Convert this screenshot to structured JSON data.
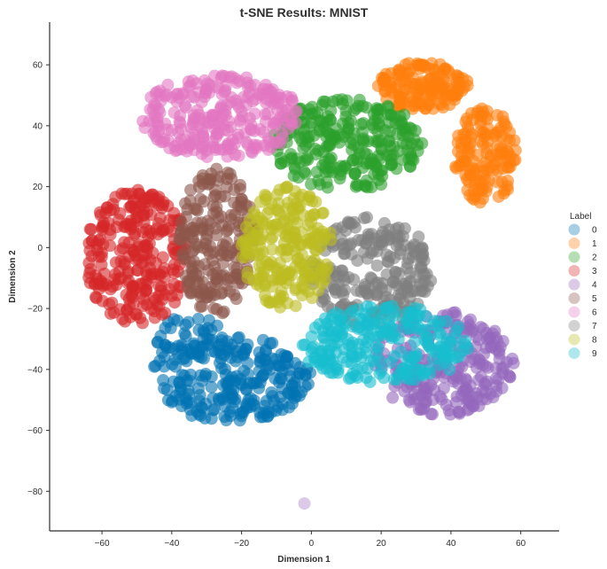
{
  "chart_data": {
    "type": "scatter",
    "title": "t-SNE Results: MNIST",
    "xlabel": "Dimension 1",
    "ylabel": "Dimension 2",
    "xlim": [
      -75,
      71
    ],
    "ylim": [
      -93,
      74
    ],
    "x_ticks": [
      -60,
      -40,
      -20,
      0,
      20,
      40,
      60
    ],
    "y_ticks": [
      -80,
      -60,
      -40,
      -20,
      0,
      20,
      40,
      60
    ],
    "x_tick_labels": [
      "−60",
      "−40",
      "−20",
      "0",
      "20",
      "40",
      "60"
    ],
    "y_tick_labels": [
      "−80",
      "−60",
      "−40",
      "−20",
      "0",
      "20",
      "40",
      "60"
    ],
    "grid": false,
    "legend": {
      "title": "Label",
      "placement": "right"
    },
    "series": [
      {
        "name": "0",
        "color": "#0173b2",
        "clusters": [
          {
            "cx": -23,
            "cy": -43,
            "rx": 23,
            "ry": 14,
            "n": 240
          },
          {
            "cx": -35,
            "cy": -30,
            "rx": 10,
            "ry": 8,
            "n": 40
          }
        ]
      },
      {
        "name": "1",
        "color": "#ff7f0e",
        "clusters": [
          {
            "cx": 32,
            "cy": 53,
            "rx": 13,
            "ry": 8,
            "n": 160
          },
          {
            "cx": 50,
            "cy": 30,
            "rx": 9,
            "ry": 16,
            "n": 140
          }
        ]
      },
      {
        "name": "2",
        "color": "#2ca02c",
        "clusters": [
          {
            "cx": 10,
            "cy": 34,
            "rx": 22,
            "ry": 15,
            "n": 260
          }
        ]
      },
      {
        "name": "3",
        "color": "#d62728",
        "clusters": [
          {
            "cx": -50,
            "cy": -3,
            "rx": 15,
            "ry": 22,
            "n": 260
          }
        ]
      },
      {
        "name": "4",
        "color": "#9467bd",
        "clusters": [
          {
            "cx": 38,
            "cy": -38,
            "rx": 20,
            "ry": 17,
            "n": 240
          }
        ]
      },
      {
        "name": "5",
        "color": "#8c564b",
        "clusters": [
          {
            "cx": -27,
            "cy": 2,
            "rx": 11,
            "ry": 24,
            "n": 200
          }
        ]
      },
      {
        "name": "6",
        "color": "#e377c2",
        "clusters": [
          {
            "cx": -26,
            "cy": 43,
            "rx": 23,
            "ry": 14,
            "n": 260
          }
        ]
      },
      {
        "name": "7",
        "color": "#7f7f7f",
        "clusters": [
          {
            "cx": 17,
            "cy": -8,
            "rx": 18,
            "ry": 18,
            "n": 220
          }
        ]
      },
      {
        "name": "8",
        "color": "#bcbd22",
        "clusters": [
          {
            "cx": -7,
            "cy": 0,
            "rx": 13,
            "ry": 20,
            "n": 220
          }
        ]
      },
      {
        "name": "9",
        "color": "#17becf",
        "clusters": [
          {
            "cx": 21,
            "cy": -32,
            "rx": 24,
            "ry": 13,
            "n": 240
          }
        ]
      }
    ],
    "outliers": [
      {
        "x": -2,
        "y": -84,
        "series": "4"
      }
    ],
    "point_radius": 7,
    "point_opacity": 0.6
  }
}
